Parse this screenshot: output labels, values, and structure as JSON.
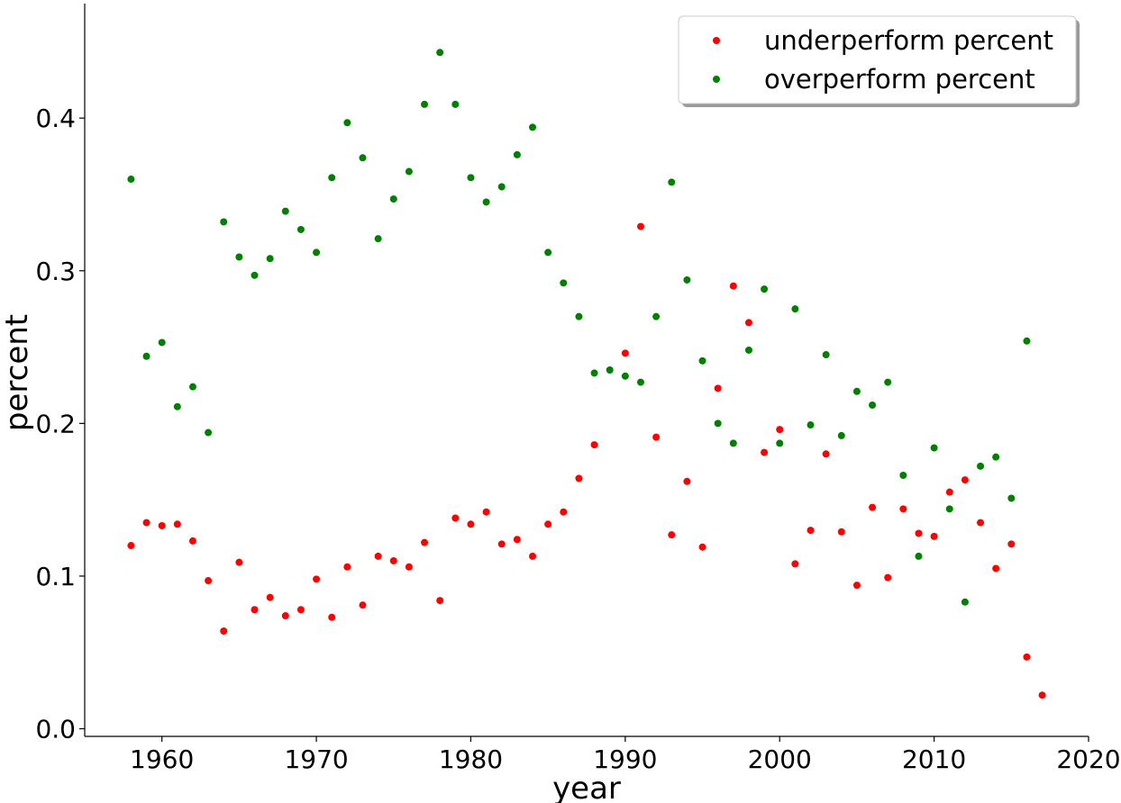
{
  "chart_data": {
    "type": "scatter",
    "title": "",
    "xlabel": "year",
    "ylabel": "percent",
    "xlim": [
      1955,
      2020
    ],
    "ylim": [
      -0.005,
      0.475
    ],
    "xticks": [
      1960,
      1970,
      1980,
      1990,
      2000,
      2010,
      2020
    ],
    "yticks": [
      0.0,
      0.1,
      0.2,
      0.3,
      0.4
    ],
    "xtick_labels": [
      "1960",
      "1970",
      "1980",
      "1990",
      "2000",
      "2010",
      "2020"
    ],
    "ytick_labels": [
      "0.0",
      "0.1",
      "0.2",
      "0.3",
      "0.4"
    ],
    "grid": false,
    "legend_position": "top-right",
    "series": [
      {
        "name": "underperform percent",
        "color": "#ff0000",
        "x": [
          1958,
          1959,
          1960,
          1961,
          1962,
          1963,
          1964,
          1965,
          1966,
          1967,
          1968,
          1969,
          1970,
          1971,
          1972,
          1973,
          1974,
          1975,
          1976,
          1977,
          1978,
          1979,
          1980,
          1981,
          1982,
          1983,
          1984,
          1985,
          1986,
          1987,
          1988,
          1990,
          1991,
          1992,
          1993,
          1994,
          1995,
          1996,
          1997,
          1998,
          1999,
          2000,
          2001,
          2002,
          2003,
          2004,
          2005,
          2006,
          2007,
          2008,
          2009,
          2010,
          2011,
          2012,
          2013,
          2014,
          2015,
          2016,
          2017
        ],
        "y": [
          0.12,
          0.135,
          0.133,
          0.134,
          0.123,
          0.097,
          0.064,
          0.109,
          0.078,
          0.086,
          0.074,
          0.078,
          0.098,
          0.073,
          0.106,
          0.081,
          0.113,
          0.11,
          0.106,
          0.122,
          0.084,
          0.138,
          0.134,
          0.142,
          0.121,
          0.124,
          0.113,
          0.134,
          0.142,
          0.164,
          0.186,
          0.246,
          0.329,
          0.191,
          0.127,
          0.162,
          0.119,
          0.223,
          0.29,
          0.266,
          0.181,
          0.196,
          0.108,
          0.13,
          0.18,
          0.129,
          0.094,
          0.145,
          0.099,
          0.144,
          0.128,
          0.126,
          0.155,
          0.163,
          0.135,
          0.105,
          0.121,
          0.047,
          0.022
        ]
      },
      {
        "name": "overperform percent",
        "color": "#008000",
        "x": [
          1958,
          1959,
          1960,
          1961,
          1962,
          1963,
          1964,
          1965,
          1966,
          1967,
          1968,
          1969,
          1970,
          1971,
          1972,
          1973,
          1974,
          1975,
          1976,
          1977,
          1978,
          1979,
          1980,
          1981,
          1982,
          1983,
          1984,
          1985,
          1986,
          1987,
          1988,
          1989,
          1990,
          1991,
          1992,
          1993,
          1994,
          1995,
          1996,
          1997,
          1998,
          1999,
          2000,
          2001,
          2002,
          2003,
          2004,
          2005,
          2006,
          2007,
          2008,
          2009,
          2010,
          2011,
          2012,
          2013,
          2014,
          2015,
          2016
        ],
        "y": [
          0.36,
          0.244,
          0.253,
          0.211,
          0.224,
          0.194,
          0.332,
          0.309,
          0.297,
          0.308,
          0.339,
          0.327,
          0.312,
          0.361,
          0.397,
          0.374,
          0.321,
          0.347,
          0.365,
          0.409,
          0.443,
          0.409,
          0.361,
          0.345,
          0.355,
          0.376,
          0.394,
          0.312,
          0.292,
          0.27,
          0.233,
          0.235,
          0.231,
          0.227,
          0.27,
          0.358,
          0.294,
          0.241,
          0.2,
          0.187,
          0.248,
          0.288,
          0.187,
          0.275,
          0.199,
          0.245,
          0.192,
          0.221,
          0.212,
          0.227,
          0.166,
          0.113,
          0.184,
          0.144,
          0.083,
          0.172,
          0.178,
          0.151,
          0.254
        ]
      }
    ]
  }
}
